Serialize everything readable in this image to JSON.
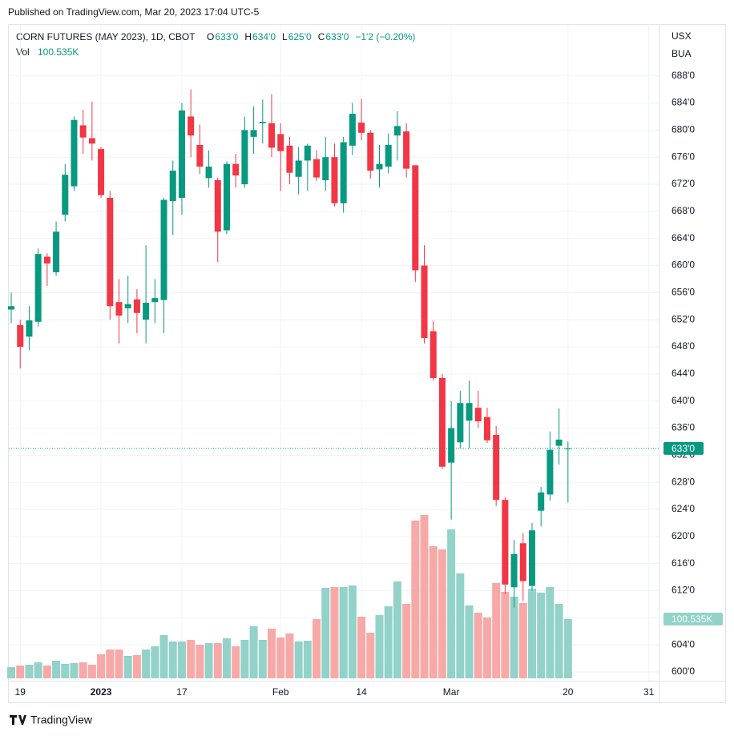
{
  "header": {
    "published": "Published on TradingView.com, Mar 20, 2023 17:04 UTC-5",
    "brand": "TradingView"
  },
  "chart_data": {
    "type": "candlestick",
    "title": "CORN FUTURES (MAY 2023), 1D, CBOT",
    "ohlc_legend": [
      {
        "label": "O",
        "value": "633'0"
      },
      {
        "label": "H",
        "value": "634'0"
      },
      {
        "label": "L",
        "value": "625'0"
      },
      {
        "label": "C",
        "value": "633'0"
      }
    ],
    "change": "−1'2 (−0.20%)",
    "volume_title": "Vol",
    "axis_units": [
      "USX",
      "BUA"
    ],
    "up_color": "#089981",
    "down_color": "#f23645",
    "volume_up_color": "#92d2c9",
    "volume_down_color": "#f7a9a7",
    "open": [
      653.5,
      651.2,
      649.5,
      651.7,
      661.3,
      659,
      667.5,
      671.7,
      680.7,
      678.8,
      677.2,
      670,
      654.6,
      653.7,
      655,
      652,
      654.6,
      654.9,
      669.5,
      670,
      682,
      677.8,
      672.9,
      672.6,
      665.2,
      675,
      672,
      679,
      681,
      681,
      679.4,
      677.7,
      673.1,
      675.5,
      675.7,
      672.6,
      676,
      669.2,
      677.7,
      681.1,
      679.6,
      674.2,
      674.6,
      679.2,
      679.8,
      674.8,
      660,
      650.3,
      643.4,
      630.9,
      633.9,
      637.1,
      639,
      637.6,
      635,
      625.4,
      612.5,
      619,
      612.7,
      623.8,
      626.2,
      633.4,
      633
    ],
    "high": [
      656,
      652,
      654,
      662.5,
      661.8,
      666.5,
      675,
      682,
      683,
      684.2,
      677.5,
      671,
      658,
      658.5,
      656.5,
      663,
      658,
      670,
      675.5,
      684,
      686,
      680.8,
      677,
      673,
      675.4,
      676.5,
      682,
      683.5,
      684.5,
      685.3,
      681,
      679,
      677.5,
      678,
      677,
      679,
      678,
      679,
      684,
      684.6,
      680,
      677.8,
      679.5,
      682.8,
      681,
      674.8,
      663,
      651.8,
      644,
      640,
      641.5,
      643,
      641.5,
      639,
      636.3,
      625.8,
      619.5,
      620.5,
      622,
      627.3,
      635.5,
      638.9,
      634
    ],
    "low": [
      651.5,
      644.8,
      647.5,
      651,
      657,
      658.5,
      666.5,
      671,
      676.5,
      675.5,
      670,
      652,
      648.5,
      651.5,
      650,
      648.5,
      651.5,
      650,
      664.5,
      667.5,
      676,
      673.5,
      671.5,
      660.5,
      664.6,
      671.5,
      671.5,
      676.5,
      678,
      676,
      671,
      672,
      670.5,
      671,
      672.5,
      671,
      668.7,
      667.8,
      676.3,
      678.5,
      672.8,
      671.5,
      673.6,
      675.5,
      673,
      657.6,
      648.5,
      643,
      630,
      622.5,
      633,
      633,
      636,
      633.8,
      624.5,
      611.5,
      609.5,
      610.5,
      612,
      621.5,
      625.3,
      630.6,
      625
    ],
    "close": [
      654,
      648,
      651.9,
      661.7,
      660.3,
      665,
      673.4,
      681.5,
      678.9,
      678,
      670.4,
      654,
      652.6,
      654.3,
      653,
      654.5,
      655.2,
      669.7,
      674,
      682.9,
      679.2,
      674.6,
      674.6,
      665,
      675,
      673.3,
      680,
      680,
      681.2,
      677.4,
      676.9,
      673.7,
      675.5,
      677.7,
      673,
      676,
      669.2,
      678.2,
      682.4,
      679.6,
      674,
      675,
      677.8,
      680.6,
      674.3,
      659.3,
      649.3,
      643.4,
      630.3,
      636,
      639.7,
      639.7,
      637,
      634.2,
      625.4,
      612.9,
      617.4,
      613.4,
      620.9,
      626.5,
      632.8,
      634.3,
      633
    ],
    "volume": [
      19020,
      21740,
      23100,
      27170,
      21740,
      29890,
      24450,
      25810,
      27170,
      23100,
      40760,
      48910,
      48910,
      38040,
      39400,
      48910,
      54340,
      73360,
      62500,
      62500,
      65210,
      57060,
      59780,
      59780,
      67930,
      54340,
      65210,
      88310,
      65210,
      84230,
      69290,
      76080,
      62500,
      63850,
      100535,
      153520,
      154880,
      154880,
      157600,
      104610,
      77440,
      107330,
      122270,
      164390,
      126350,
      267640,
      277150,
      224170,
      218730,
      252700,
      177980,
      123630,
      111400,
      103250,
      161670,
      146730,
      138580,
      127710,
      152160,
      145370,
      154880,
      126350,
      100535
    ],
    "volume_label": "100.535K",
    "last_price": {
      "value": 633,
      "label": "633'0"
    },
    "xlim": [
      -0.36,
      72.1
    ],
    "xticks": [
      {
        "value": 1,
        "label": "19"
      },
      {
        "value": 10,
        "label": "2023"
      },
      {
        "value": 19,
        "label": "17"
      },
      {
        "value": 30,
        "label": "Feb"
      },
      {
        "value": 39,
        "label": "14"
      },
      {
        "value": 49,
        "label": "Mar"
      },
      {
        "value": 62,
        "label": "20"
      },
      {
        "value": 71,
        "label": "31"
      }
    ],
    "ylim": [
      598.7,
      695.3
    ],
    "yticks": [
      {
        "value": 600,
        "label": "600'0"
      },
      {
        "value": 604,
        "label": "604'0"
      },
      {
        "value": 608,
        "label": "608'0"
      },
      {
        "value": 612,
        "label": "612'0"
      },
      {
        "value": 616,
        "label": "616'0"
      },
      {
        "value": 620,
        "label": "620'0"
      },
      {
        "value": 624,
        "label": "624'0"
      },
      {
        "value": 628,
        "label": "628'0"
      },
      {
        "value": 632,
        "label": "632'0"
      },
      {
        "value": 636,
        "label": "636'0"
      },
      {
        "value": 640,
        "label": "640'0"
      },
      {
        "value": 644,
        "label": "644'0"
      },
      {
        "value": 648,
        "label": "648'0"
      },
      {
        "value": 652,
        "label": "652'0"
      },
      {
        "value": 656,
        "label": "656'0"
      },
      {
        "value": 660,
        "label": "660'0"
      },
      {
        "value": 664,
        "label": "664'0"
      },
      {
        "value": 668,
        "label": "668'0"
      },
      {
        "value": 672,
        "label": "672'0"
      },
      {
        "value": 676,
        "label": "676'0"
      },
      {
        "value": 680,
        "label": "680'0"
      },
      {
        "value": 684,
        "label": "684'0"
      },
      {
        "value": 688,
        "label": "688'0"
      }
    ],
    "grid": true
  }
}
